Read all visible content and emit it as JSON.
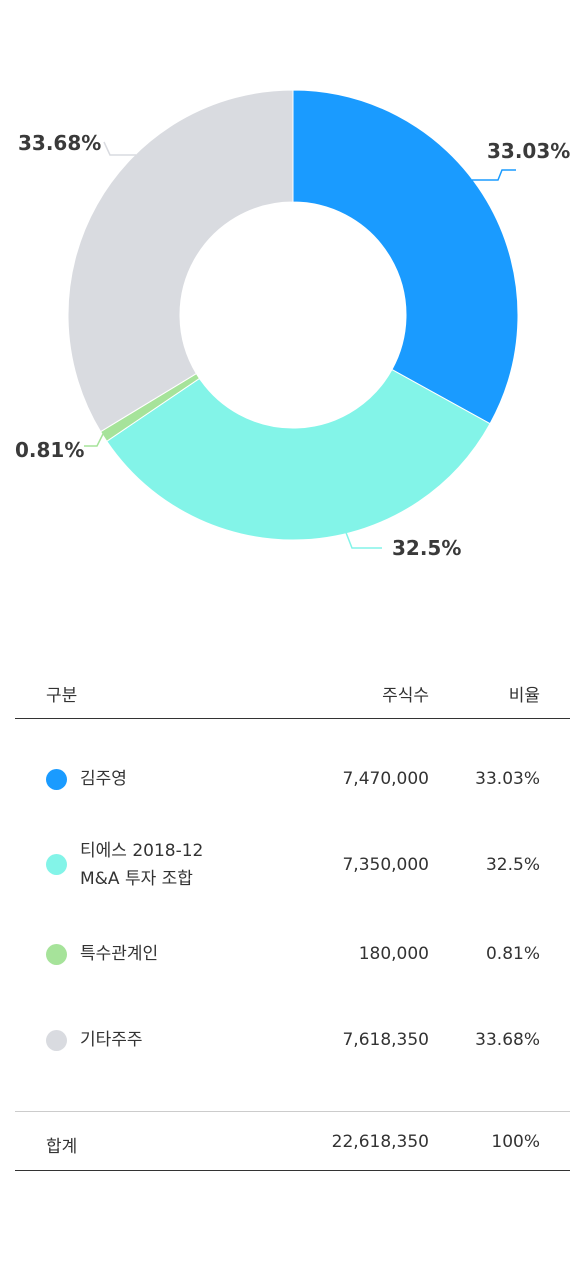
{
  "chart_data": {
    "type": "pie",
    "style": "donut",
    "categories": [
      "김주영",
      "티에스 2018-12 M&A 투자 조합",
      "특수관계인",
      "기타주주"
    ],
    "values": [
      33.03,
      32.5,
      0.81,
      33.68
    ],
    "labels": [
      "33.03%",
      "32.5%",
      "0.81%",
      "33.68%"
    ],
    "colors": [
      "#1a9bff",
      "#83f4e8",
      "#a6e39a",
      "#d9dbe0"
    ]
  },
  "table": {
    "headers": {
      "name": "구분",
      "shares": "주식수",
      "ratio": "비율"
    },
    "rows": [
      {
        "name_lines": [
          "김주영"
        ],
        "shares": "7,470,000",
        "ratio": "33.03%",
        "color": "#1a9bff"
      },
      {
        "name_lines": [
          "티에스 2018-12",
          "M&A 투자 조합"
        ],
        "shares": "7,350,000",
        "ratio": "32.5%",
        "color": "#83f4e8"
      },
      {
        "name_lines": [
          "특수관계인"
        ],
        "shares": "180,000",
        "ratio": "0.81%",
        "color": "#a6e39a"
      },
      {
        "name_lines": [
          "기타주주"
        ],
        "shares": "7,618,350",
        "ratio": "33.68%",
        "color": "#d9dbe0"
      }
    ],
    "total": {
      "name": "합계",
      "shares": "22,618,350",
      "ratio": "100%"
    }
  }
}
